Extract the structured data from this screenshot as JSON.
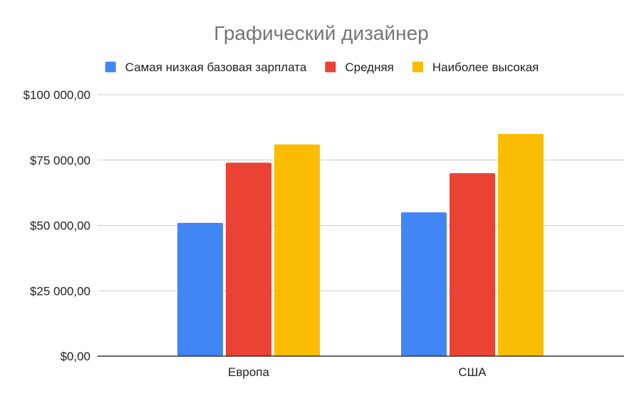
{
  "chart_data": {
    "type": "bar",
    "title": "Графический дизайнер",
    "categories": [
      "Европа",
      "США"
    ],
    "series": [
      {
        "name": "Самая низкая базовая зарплата",
        "values": [
          51000,
          55000
        ],
        "color": "#4285f4"
      },
      {
        "name": "Средняя",
        "values": [
          74000,
          70000
        ],
        "color": "#ea4335"
      },
      {
        "name": "Наиболее высокая",
        "values": [
          81000,
          85000
        ],
        "color": "#fbbc04"
      }
    ],
    "ylim": [
      0,
      100000
    ],
    "yticks": [
      0,
      25000,
      50000,
      75000,
      100000
    ],
    "ytick_labels": [
      "$0,00",
      "$25 000,00",
      "$50 000,00",
      "$75 000,00",
      "$100 000,00"
    ],
    "xlabel": "",
    "ylabel": "",
    "grid": true,
    "legend_position": "top"
  }
}
